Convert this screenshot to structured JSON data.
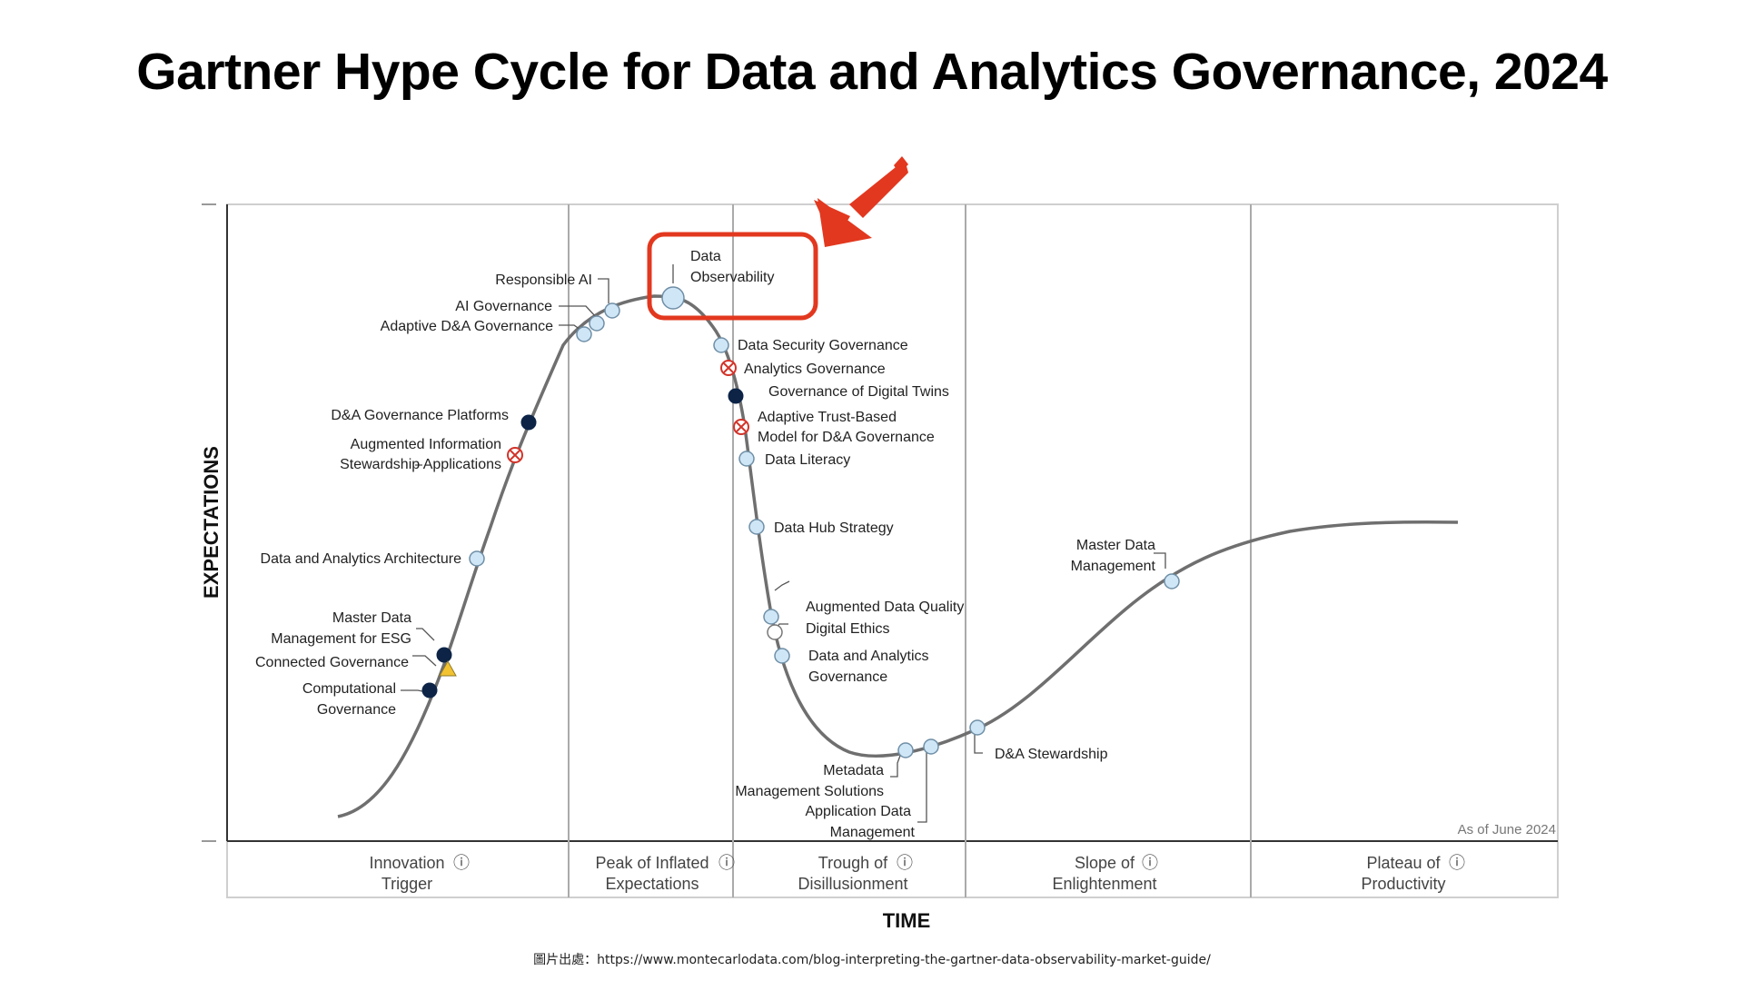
{
  "title": "Gartner Hype Cycle for Data and Analytics Governance, 2024",
  "credit": "圖片出處：https://www.montecarlodata.com/blog-interpreting-the-gartner-data-observability-market-guide/",
  "diagram": {
    "y_axis_label": "EXPECTATIONS",
    "x_axis_label": "TIME",
    "as_of": "As of June 2024",
    "highlight_color": "#e2381f",
    "phases": [
      {
        "line1": "Innovation",
        "line2": "Trigger"
      },
      {
        "line1": "Peak of Inflated",
        "line2": "Expectations"
      },
      {
        "line1": "Trough of",
        "line2": "Disillusionment"
      },
      {
        "line1": "Slope of",
        "line2": "Enlightenment"
      },
      {
        "line1": "Plateau of",
        "line2": "Productivity"
      }
    ],
    "info_icon": "ⓘ",
    "technologies": [
      {
        "lines": [
          "Responsible AI"
        ],
        "marker": "less-than-2-years"
      },
      {
        "lines": [
          "AI Governance"
        ],
        "marker": "less-than-2-years"
      },
      {
        "lines": [
          "Adaptive D&A Governance"
        ],
        "marker": "less-than-2-years"
      },
      {
        "lines": [
          "Data",
          "Observability"
        ],
        "marker": "less-than-2-years",
        "highlighted": true
      },
      {
        "lines": [
          "D&A Governance Platforms"
        ],
        "marker": "5-to-10-years"
      },
      {
        "lines": [
          "Augmented Information",
          "Stewardship Applications"
        ],
        "marker": "obsolete-before-plateau"
      },
      {
        "lines": [
          "Data and Analytics Architecture"
        ],
        "marker": "less-than-2-years"
      },
      {
        "lines": [
          "Master Data",
          "Management for ESG"
        ],
        "marker": "5-to-10-years"
      },
      {
        "lines": [
          "Connected Governance"
        ],
        "marker": "more-than-10-years"
      },
      {
        "lines": [
          "Computational",
          "Governance"
        ],
        "marker": "5-to-10-years"
      },
      {
        "lines": [
          "Data Security Governance"
        ],
        "marker": "less-than-2-years"
      },
      {
        "lines": [
          "Analytics Governance"
        ],
        "marker": "obsolete-before-plateau"
      },
      {
        "lines": [
          "Governance of Digital Twins"
        ],
        "marker": "5-to-10-years"
      },
      {
        "lines": [
          "Adaptive Trust-Based",
          "Model for D&A Governance"
        ],
        "marker": "obsolete-before-plateau"
      },
      {
        "lines": [
          "Data Literacy"
        ],
        "marker": "less-than-2-years"
      },
      {
        "lines": [
          "Data Hub Strategy"
        ],
        "marker": "less-than-2-years"
      },
      {
        "lines": [
          "Augmented Data Quality"
        ],
        "marker": "less-than-2-years"
      },
      {
        "lines": [
          "Digital Ethics"
        ],
        "marker": "2-to-5-years"
      },
      {
        "lines": [
          "Data and Analytics",
          "Governance"
        ],
        "marker": "less-than-2-years"
      },
      {
        "lines": [
          "Metadata",
          "Management Solutions"
        ],
        "marker": "less-than-2-years"
      },
      {
        "lines": [
          "Application Data",
          "Management"
        ],
        "marker": "less-than-2-years"
      },
      {
        "lines": [
          "D&A Stewardship"
        ],
        "marker": "less-than-2-years"
      },
      {
        "lines": [
          "Master Data",
          "Management"
        ],
        "marker": "less-than-2-years"
      }
    ]
  }
}
